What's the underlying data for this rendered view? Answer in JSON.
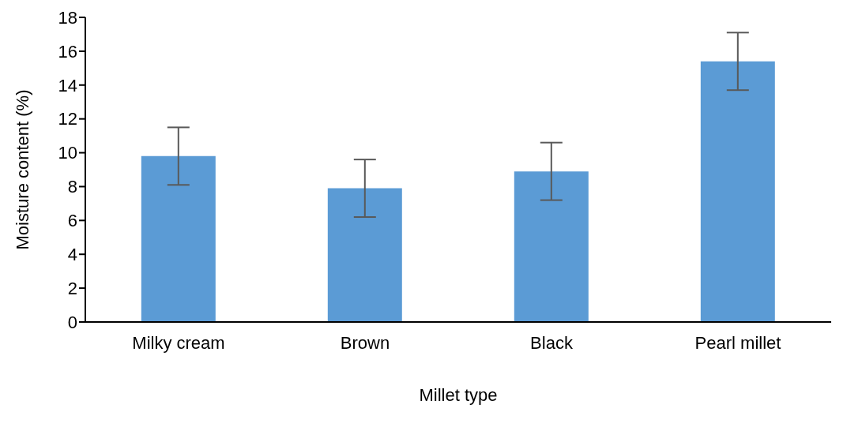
{
  "chart_data": {
    "type": "bar",
    "xlabel": "Millet type",
    "ylabel": "Moisture content (%)",
    "categories": [
      "Milky cream",
      "Brown",
      "Black",
      "Pearl millet"
    ],
    "values": [
      9.8,
      7.9,
      8.9,
      15.4
    ],
    "errors": [
      1.7,
      1.7,
      1.7,
      1.7
    ],
    "color": "#5b9bd5",
    "ylim": [
      0,
      18
    ],
    "yticks": [
      0,
      2,
      4,
      6,
      8,
      10,
      12,
      14,
      16,
      18
    ],
    "grid": false,
    "legend": false
  }
}
